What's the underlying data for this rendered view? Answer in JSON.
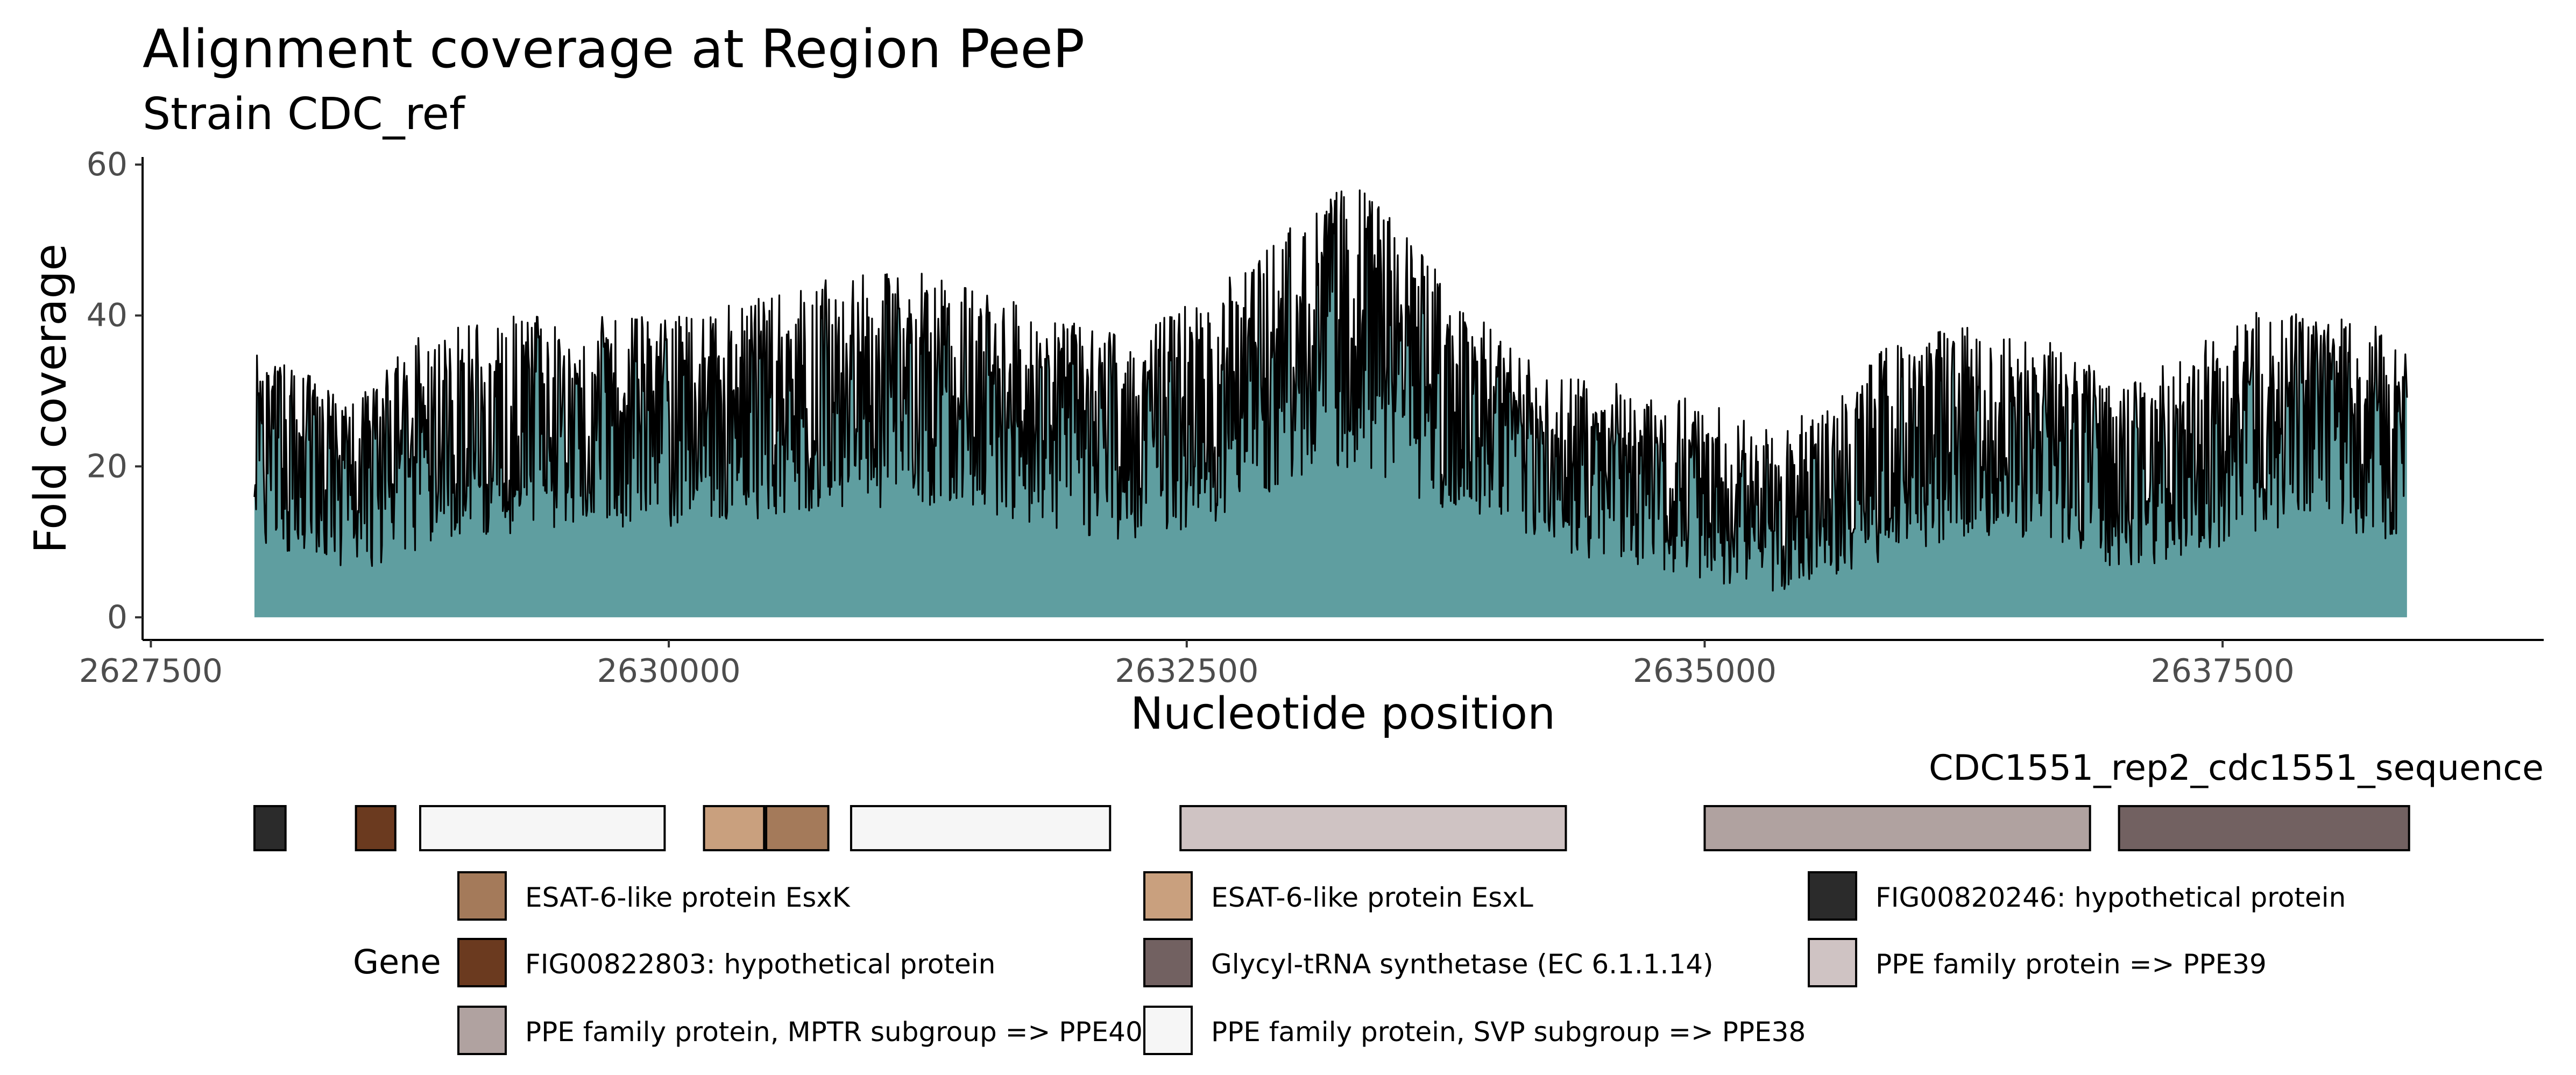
{
  "chart_data": {
    "type": "area",
    "title": "Alignment coverage at Region PeeP",
    "subtitle": "Strain CDC_ref",
    "xlabel": "Nucleotide position",
    "ylabel": "Fold coverage",
    "xlim": [
      2627460,
      2639050
    ],
    "ylim": [
      -3,
      61
    ],
    "x_ticks": [
      2627500,
      2630000,
      2632500,
      2635000,
      2637500
    ],
    "x_tick_labels": [
      "2627500",
      "2630000",
      "2632500",
      "2635000",
      "2637500"
    ],
    "y_ticks": [
      0,
      20,
      40,
      60
    ],
    "y_tick_labels": [
      "0",
      "20",
      "40",
      "60"
    ],
    "grid": false,
    "fill_color": "#5f9ea0",
    "line_color": "#000000",
    "series": [
      {
        "x_start": 2628000,
        "x_end": 2638390,
        "coverage_profile": {
          "x": [
            2628000,
            2628200,
            2628500,
            2628800,
            2629200,
            2629600,
            2630000,
            2630400,
            2630800,
            2631200,
            2631500,
            2631800,
            2632100,
            2632400,
            2632700,
            2633000,
            2633300,
            2633600,
            2633900,
            2634200,
            2634600,
            2635000,
            2635300,
            2635600,
            2635900,
            2636300,
            2636700,
            2637000,
            2637300,
            2637700,
            2638000,
            2638390
          ],
          "mean": [
            24,
            21,
            19,
            23,
            25,
            26,
            27,
            28,
            30,
            32,
            31,
            28,
            24,
            26,
            29,
            34,
            38,
            33,
            27,
            22,
            20,
            17,
            14,
            15,
            22,
            25,
            24,
            18,
            21,
            25,
            27,
            24
          ],
          "max": [
            35,
            33,
            29,
            38,
            40,
            40,
            40,
            42,
            45,
            46,
            44,
            40,
            38,
            40,
            45,
            52,
            58,
            50,
            40,
            33,
            31,
            29,
            25,
            28,
            37,
            39,
            37,
            30,
            35,
            41,
            40,
            38
          ],
          "min": [
            10,
            8,
            6,
            9,
            11,
            12,
            12,
            13,
            14,
            15,
            14,
            12,
            10,
            11,
            13,
            18,
            20,
            16,
            12,
            9,
            7,
            5,
            3,
            4,
            8,
            11,
            10,
            6,
            8,
            11,
            12,
            9
          ]
        }
      }
    ],
    "gene_track": {
      "title": "CDC1551_rep2_cdc1551_sequence",
      "genes": [
        {
          "start": 2628000,
          "end": 2628150,
          "product": "FIG00820246: hypothetical protein"
        },
        {
          "start": 2628490,
          "end": 2628680,
          "product": "FIG00822803: hypothetical protein"
        },
        {
          "start": 2628800,
          "end": 2629980,
          "product": "PPE family protein, SVP subgroup => PPE38"
        },
        {
          "start": 2630170,
          "end": 2630460,
          "product": "ESAT-6-like protein EsxL"
        },
        {
          "start": 2630470,
          "end": 2630770,
          "product": "ESAT-6-like protein EsxK"
        },
        {
          "start": 2630880,
          "end": 2632130,
          "product": "PPE family protein, SVP subgroup => PPE38"
        },
        {
          "start": 2632470,
          "end": 2634330,
          "product": "PPE family protein => PPE39"
        },
        {
          "start": 2635000,
          "end": 2636860,
          "product": "PPE family protein, MPTR subgroup => PPE40"
        },
        {
          "start": 2637000,
          "end": 2638400,
          "product": "Glycyl-tRNA synthetase (EC 6.1.1.14)"
        }
      ]
    },
    "legend": {
      "title": "Gene",
      "placement": "bottom",
      "entries": [
        {
          "label": "ESAT-6-like protein EsxK",
          "color": "#a47a5a"
        },
        {
          "label": "ESAT-6-like protein EsxL",
          "color": "#c9a07e"
        },
        {
          "label": "FIG00820246: hypothetical protein",
          "color": "#2b2b2b"
        },
        {
          "label": "FIG00822803: hypothetical protein",
          "color": "#6b3a1f"
        },
        {
          "label": "Glycyl-tRNA synthetase (EC 6.1.1.14)",
          "color": "#726161"
        },
        {
          "label": "PPE family protein => PPE39",
          "color": "#cfc3c3"
        },
        {
          "label": "PPE family protein, MPTR subgroup => PPE40",
          "color": "#b0a2a0"
        },
        {
          "label": "PPE family protein, SVP subgroup => PPE38",
          "color": "#f6f6f6"
        }
      ]
    }
  }
}
